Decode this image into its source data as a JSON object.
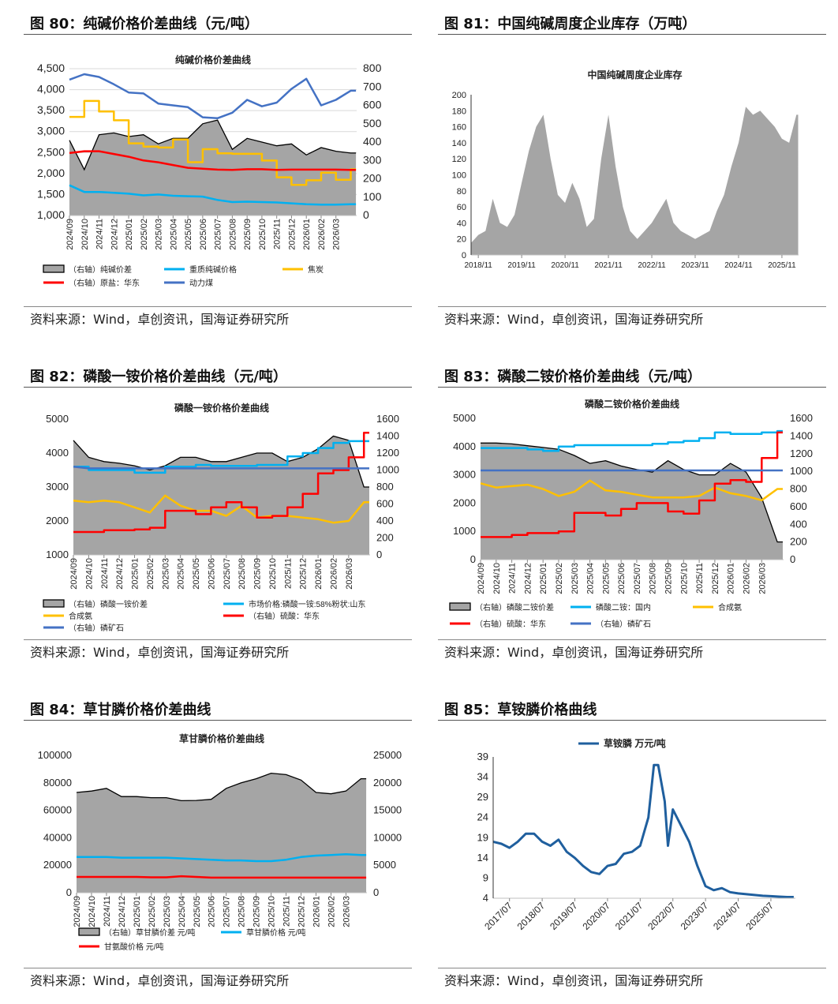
{
  "figures": [
    {
      "title": "图 80：纯碱价格价差曲线（元/吨）",
      "source": "资料来源：Wind，卓创资讯，国海证券研究所"
    },
    {
      "title": "图 81：中国纯碱周度企业库存（万吨）",
      "source": "资料来源：Wind，卓创资讯，国海证券研究所"
    },
    {
      "title": "图 82：磷酸一铵价格价差曲线（元/吨）",
      "source": "资料来源：Wind，卓创资讯，国海证券研究所"
    },
    {
      "title": "图 83：磷酸二铵价格价差曲线（元/吨）",
      "source": "资料来源：Wind，卓创资讯，国海证券研究所"
    },
    {
      "title": "图 84：草甘膦价格价差曲线",
      "source": "资料来源：Wind，卓创资讯，国海证券研究所"
    },
    {
      "title": "图 85：草铵膦价格曲线",
      "source": "资料来源：Wind，卓创资讯，国海证券研究所"
    }
  ],
  "colors": {
    "area": "#a5a5a5",
    "light_blue": "#00b0f0",
    "yellow": "#ffc000",
    "red": "#ff0000",
    "blue": "#4472c4",
    "navy": "#1f5f9e"
  },
  "chart_data": [
    {
      "type": "line",
      "title": "纯碱价格价差曲线",
      "grid": true,
      "x_domain": [
        0,
        19.4
      ],
      "x_labels": [
        "2024/09",
        "2024/10",
        "2024/11",
        "2024/12",
        "2025/01",
        "2025/02",
        "2025/03",
        "2025/04",
        "2025/05",
        "2025/06",
        "2025/07",
        "2025/08",
        "2025/09",
        "2025/10",
        "2025/11",
        "2025/12",
        "2026/01",
        "2026/02",
        "2026/03"
      ],
      "y_left": {
        "min": 1000,
        "max": 4500,
        "ticks": [
          "1,000",
          "1,500",
          "2,000",
          "2,500",
          "3,000",
          "3,500",
          "4,000",
          "4,500"
        ]
      },
      "y_right": {
        "min": 0,
        "max": 800,
        "ticks": [
          "0",
          "100",
          "200",
          "300",
          "400",
          "500",
          "600",
          "700",
          "800"
        ]
      },
      "series": [
        {
          "name": "（右轴）纯碱价差",
          "type": "area",
          "axis": "right",
          "color": "#a5a5a5",
          "values": [
            410,
            250,
            440,
            450,
            430,
            440,
            390,
            420,
            420,
            500,
            520,
            360,
            420,
            400,
            380,
            390,
            330,
            370,
            350,
            340
          ]
        },
        {
          "name": "重质纯碱价格",
          "type": "line",
          "axis": "left",
          "color": "#00b0f0",
          "values": [
            1720,
            1560,
            1560,
            1540,
            1520,
            1480,
            1500,
            1470,
            1460,
            1450,
            1370,
            1320,
            1330,
            1320,
            1310,
            1290,
            1270,
            1260,
            1260,
            1270
          ]
        },
        {
          "name": "焦炭",
          "type": "line",
          "axis": "left",
          "color": "#ffc000",
          "step": true,
          "values": [
            3350,
            3730,
            3480,
            3270,
            2720,
            2640,
            2620,
            2810,
            2270,
            2580,
            2480,
            2470,
            2470,
            2310,
            1910,
            1730,
            1840,
            2020,
            1850,
            2100
          ]
        },
        {
          "name": "（右轴）原盐：华东",
          "type": "line",
          "axis": "right",
          "color": "#ff0000",
          "values": [
            340,
            350,
            350,
            335,
            320,
            300,
            290,
            275,
            260,
            255,
            250,
            248,
            252,
            252,
            248,
            250,
            250,
            250,
            250,
            248
          ]
        },
        {
          "name": "动力煤",
          "type": "line",
          "axis": "right",
          "color": "#4472c4",
          "values": [
            740,
            770,
            755,
            715,
            670,
            665,
            610,
            600,
            590,
            535,
            530,
            560,
            630,
            595,
            615,
            690,
            745,
            600,
            630,
            680
          ]
        }
      ]
    },
    {
      "type": "area",
      "title": "中国纯碱周度企业库存",
      "grid": false,
      "x_domain": [
        0,
        45.3
      ],
      "x_label_positions": [
        1,
        7,
        13,
        19,
        25,
        31,
        37,
        43
      ],
      "x_labels": [
        "2018/11",
        "2019/11",
        "2020/11",
        "2021/11",
        "2022/11",
        "2023/11",
        "2024/11",
        "2025/11"
      ],
      "y_left": {
        "min": 0,
        "max": 200,
        "ticks": [
          "0",
          "20",
          "40",
          "60",
          "80",
          "100",
          "120",
          "140",
          "160",
          "180",
          "200"
        ]
      },
      "series": [
        {
          "name": "中国纯碱周度企业库存",
          "type": "area",
          "axis": "left",
          "color": "#a5a5a5",
          "nostroke": true,
          "values": [
            15,
            25,
            30,
            70,
            40,
            35,
            50,
            90,
            130,
            160,
            175,
            120,
            75,
            65,
            90,
            70,
            35,
            45,
            120,
            175,
            110,
            60,
            30,
            20,
            30,
            40,
            55,
            70,
            40,
            30,
            25,
            20,
            25,
            30,
            55,
            75,
            110,
            140,
            185,
            175,
            180,
            170,
            160,
            145,
            140,
            175
          ]
        }
      ]
    },
    {
      "type": "line",
      "title": "磷酸一铵价格价差曲线",
      "grid": false,
      "x_domain": [
        0,
        19.4
      ],
      "x_labels": [
        "2024/09",
        "2024/10",
        "2024/11",
        "2024/12",
        "2025/01",
        "2025/02",
        "2025/03",
        "2025/04",
        "2025/05",
        "2025/06",
        "2025/07",
        "2025/08",
        "2025/09",
        "2025/10",
        "2025/11",
        "2025/12",
        "2026/01",
        "2026/02",
        "2026/03"
      ],
      "y_left": {
        "min": 1000,
        "max": 5000,
        "ticks": [
          "1000",
          "2000",
          "3000",
          "4000",
          "5000"
        ]
      },
      "y_right": {
        "min": 0,
        "max": 1600,
        "ticks": [
          "0",
          "200",
          "400",
          "600",
          "800",
          "1000",
          "1200",
          "1400",
          "1600"
        ]
      },
      "series": [
        {
          "name": "（右轴）磷酸一铵价差",
          "type": "area",
          "axis": "right",
          "color": "#a5a5a5",
          "values": [
            1350,
            1150,
            1100,
            1080,
            1050,
            1000,
            1050,
            1150,
            1150,
            1100,
            1100,
            1150,
            1200,
            1200,
            1100,
            1150,
            1250,
            1400,
            1350,
            800
          ]
        },
        {
          "name": "市场价格:磷酸一铵:58%粉状:山东",
          "type": "line",
          "axis": "left",
          "color": "#00b0f0",
          "step": true,
          "values": [
            3600,
            3500,
            3500,
            3500,
            3420,
            3420,
            3600,
            3600,
            3650,
            3620,
            3620,
            3620,
            3650,
            3650,
            3900,
            4000,
            4150,
            4300,
            4350,
            4350
          ]
        },
        {
          "name": "合成氨",
          "type": "line",
          "axis": "left",
          "color": "#ffc000",
          "values": [
            2600,
            2550,
            2600,
            2550,
            2400,
            2250,
            2750,
            2450,
            2300,
            2300,
            2150,
            2450,
            2100,
            2150,
            2150,
            2100,
            2050,
            1950,
            2000,
            2550
          ]
        },
        {
          "name": "（右轴）硫酸：华东",
          "type": "line",
          "axis": "right",
          "color": "#ff0000",
          "step": true,
          "values": [
            270,
            270,
            290,
            290,
            300,
            320,
            520,
            520,
            480,
            560,
            620,
            560,
            440,
            460,
            560,
            720,
            960,
            1000,
            1150,
            1440
          ]
        },
        {
          "name": "（右轴）磷矿石",
          "type": "line",
          "axis": "right",
          "color": "#4472c4",
          "values": [
            1040,
            1020,
            1020,
            1020,
            1020,
            1020,
            1020,
            1020,
            1020,
            1020,
            1020,
            1020,
            1020,
            1020,
            1020,
            1020,
            1020,
            1020,
            1020,
            1020
          ]
        }
      ]
    },
    {
      "type": "line",
      "title": "磷酸二铵价格价差曲线",
      "grid": false,
      "x_domain": [
        0,
        19.4
      ],
      "x_labels": [
        "2024/09",
        "2024/10",
        "2024/11",
        "2024/12",
        "2025/01",
        "2025/02",
        "2025/03",
        "2025/04",
        "2025/05",
        "2025/06",
        "2025/07",
        "2025/08",
        "2025/09",
        "2025/10",
        "2025/11",
        "2025/12",
        "2026/01",
        "2026/02",
        "2026/03"
      ],
      "y_left": {
        "min": 0,
        "max": 5000,
        "ticks": [
          "0",
          "1000",
          "2000",
          "3000",
          "4000",
          "5000"
        ]
      },
      "y_right": {
        "min": 0,
        "max": 1600,
        "ticks": [
          "0",
          "200",
          "400",
          "600",
          "800",
          "1000",
          "1200",
          "1400",
          "1600"
        ]
      },
      "series": [
        {
          "name": "（右轴）磷酸二铵价差",
          "type": "area",
          "axis": "right",
          "color": "#a5a5a5",
          "values": [
            1320,
            1320,
            1310,
            1290,
            1270,
            1250,
            1180,
            1090,
            1120,
            1060,
            1020,
            990,
            1120,
            1020,
            960,
            960,
            1090,
            990,
            700,
            200
          ]
        },
        {
          "name": "磷酸二铵：国内",
          "type": "line",
          "axis": "left",
          "color": "#00b0f0",
          "step": true,
          "values": [
            3950,
            3950,
            3950,
            3900,
            3850,
            4000,
            4050,
            4050,
            4050,
            4050,
            4050,
            4100,
            4150,
            4200,
            4300,
            4500,
            4450,
            4450,
            4500,
            4550
          ]
        },
        {
          "name": "合成氨",
          "type": "line",
          "axis": "left",
          "color": "#ffc000",
          "values": [
            2700,
            2550,
            2600,
            2650,
            2500,
            2250,
            2400,
            2800,
            2450,
            2400,
            2300,
            2200,
            2200,
            2200,
            2250,
            2550,
            2350,
            2250,
            2100,
            2500
          ]
        },
        {
          "name": "（右轴）硫酸：华东",
          "type": "line",
          "axis": "right",
          "color": "#ff0000",
          "step": true,
          "values": [
            256,
            256,
            280,
            300,
            300,
            320,
            530,
            530,
            500,
            575,
            640,
            640,
            545,
            520,
            670,
            860,
            900,
            880,
            1150,
            1440
          ]
        },
        {
          "name": "（右轴）磷矿石",
          "type": "line",
          "axis": "right",
          "color": "#4472c4",
          "values": [
            1010,
            1010,
            1010,
            1010,
            1010,
            1010,
            1010,
            1010,
            1010,
            1010,
            1010,
            1010,
            1010,
            1010,
            1010,
            1010,
            1010,
            1010,
            1010,
            1010
          ]
        }
      ]
    },
    {
      "type": "line",
      "title": "草甘膦价格价差曲线",
      "grid": false,
      "x_domain": [
        0,
        19.4
      ],
      "x_labels": [
        "2024/09",
        "2024/10",
        "2024/11",
        "2024/12",
        "2025/01",
        "2025/02",
        "2025/03",
        "2025/04",
        "2025/05",
        "2025/06",
        "2025/07",
        "2025/08",
        "2025/09",
        "2025/10",
        "2025/11",
        "2025/12",
        "2026/01",
        "2026/02",
        "2026/03"
      ],
      "y_left": {
        "min": 0,
        "max": 100000,
        "ticks": [
          "0",
          "20000",
          "40000",
          "60000",
          "80000",
          "100000"
        ]
      },
      "y_right": {
        "min": 0,
        "max": 25000,
        "ticks": [
          "0",
          "5000",
          "10000",
          "15000",
          "20000",
          "25000"
        ]
      },
      "series": [
        {
          "name": "（右轴）草甘膦价差 元/吨",
          "type": "area",
          "axis": "right",
          "color": "#a5a5a5",
          "values": [
            18250,
            18500,
            19000,
            17500,
            17500,
            17300,
            17300,
            16750,
            16800,
            17000,
            19000,
            20000,
            20750,
            21750,
            21500,
            20500,
            18250,
            18000,
            18500,
            20750
          ]
        },
        {
          "name": "草甘膦价格 元/吨",
          "type": "line",
          "axis": "left",
          "color": "#00b0f0",
          "values": [
            26000,
            26000,
            26000,
            25500,
            25500,
            25500,
            25500,
            25000,
            24500,
            24000,
            23500,
            23500,
            23000,
            23000,
            24000,
            26000,
            27000,
            27500,
            28000,
            27500
          ]
        },
        {
          "name": "甘氨酸价格 元/吨",
          "type": "line",
          "axis": "left",
          "color": "#ff0000",
          "values": [
            11500,
            11500,
            11500,
            11500,
            11500,
            11200,
            11200,
            12000,
            11500,
            11000,
            11000,
            11000,
            11000,
            11000,
            11000,
            11000,
            11000,
            11000,
            11000,
            11000
          ]
        }
      ]
    },
    {
      "type": "line",
      "title": "",
      "grid": false,
      "x_domain": [
        2017.0,
        2026.25
      ],
      "x_label_positions": [
        2017.5,
        2018.5,
        2019.5,
        2020.5,
        2021.5,
        2022.5,
        2023.5,
        2024.5,
        2025.5
      ],
      "x_labels": [
        "2017/07",
        "2018/07",
        "2019/07",
        "2020/07",
        "2021/07",
        "2022/07",
        "2023/07",
        "2024/07",
        "2025/07"
      ],
      "y_left": {
        "min": 4,
        "max": 39,
        "ticks": [
          "4",
          "9",
          "14",
          "19",
          "24",
          "29",
          "34",
          "39"
        ]
      },
      "series": [
        {
          "name": "草铵膦 万元/吨",
          "type": "line",
          "axis": "left",
          "color": "#1f5f9e",
          "width": 3,
          "x": [
            2017.0,
            2017.25,
            2017.5,
            2017.75,
            2018.0,
            2018.25,
            2018.5,
            2018.75,
            2019.0,
            2019.25,
            2019.5,
            2019.75,
            2020.0,
            2020.25,
            2020.5,
            2020.75,
            2021.0,
            2021.25,
            2021.5,
            2021.75,
            2021.92,
            2022.05,
            2022.25,
            2022.35,
            2022.5,
            2022.75,
            2023.0,
            2023.25,
            2023.5,
            2023.75,
            2024.0,
            2024.25,
            2024.5,
            2024.75,
            2025.0,
            2025.25,
            2025.5,
            2025.75,
            2026.0,
            2026.2
          ],
          "values": [
            18,
            17.5,
            16.5,
            18,
            20,
            20,
            18,
            17,
            18.5,
            15.5,
            14,
            12,
            10.5,
            10,
            12,
            12.5,
            15,
            15.5,
            17,
            24,
            37,
            37,
            28,
            17,
            26,
            22,
            18,
            12,
            7,
            6,
            6.5,
            5.5,
            5.2,
            5,
            4.8,
            4.6,
            4.5,
            4.4,
            4.3,
            4.3
          ]
        }
      ]
    }
  ]
}
